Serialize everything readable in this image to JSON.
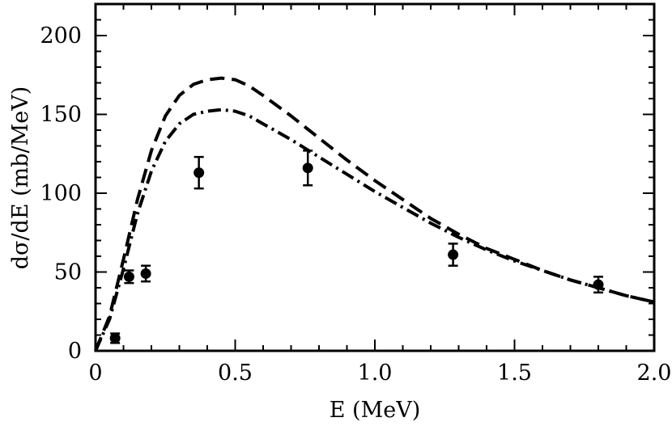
{
  "chart_data": {
    "type": "line",
    "xlabel": "E (MeV)",
    "ylabel": "dσ/dE (mb/MeV)",
    "xlim": [
      0,
      2.0
    ],
    "ylim": [
      0,
      220
    ],
    "grid": false,
    "legend": "none",
    "x_ticks": [
      "0",
      "0.5",
      "1.0",
      "1.5",
      "2.0"
    ],
    "x_tick_values": [
      0,
      0.5,
      1.0,
      1.5,
      2.0
    ],
    "y_ticks": [
      "0",
      "50",
      "100",
      "150",
      "200"
    ],
    "y_tick_values": [
      0,
      50,
      100,
      150,
      200
    ],
    "series": [
      {
        "style": "dashed",
        "color": "#000000",
        "x": [
          0,
          0.05,
          0.1,
          0.15,
          0.2,
          0.25,
          0.3,
          0.35,
          0.4,
          0.45,
          0.5,
          0.55,
          0.6,
          0.7,
          0.8,
          0.9,
          1.0,
          1.1,
          1.2,
          1.3,
          1.4,
          1.5,
          1.6,
          1.7,
          1.8,
          1.9,
          2.0
        ],
        "y": [
          0,
          22,
          58,
          96,
          127,
          149,
          162,
          169,
          172,
          173,
          172,
          168,
          162,
          149,
          135,
          121,
          108,
          96,
          84,
          74,
          65,
          58,
          51,
          45,
          40,
          35,
          31
        ]
      },
      {
        "style": "dash-dot",
        "color": "#000000",
        "x": [
          0,
          0.05,
          0.1,
          0.15,
          0.2,
          0.25,
          0.3,
          0.35,
          0.4,
          0.45,
          0.5,
          0.55,
          0.6,
          0.7,
          0.8,
          0.9,
          1.0,
          1.1,
          1.2,
          1.3,
          1.4,
          1.5,
          1.6,
          1.7,
          1.8,
          1.9,
          2.0
        ],
        "y": [
          0,
          20,
          52,
          87,
          114,
          133,
          144,
          150,
          152,
          153,
          152,
          149,
          144,
          134,
          123,
          112,
          101,
          91,
          81,
          72,
          64,
          57,
          51,
          45,
          40,
          35,
          31
        ]
      }
    ],
    "points": [
      {
        "x": 0.07,
        "y": 8,
        "err": 3
      },
      {
        "x": 0.12,
        "y": 47,
        "err": 4
      },
      {
        "x": 0.18,
        "y": 49,
        "err": 5
      },
      {
        "x": 0.37,
        "y": 113,
        "err": 10
      },
      {
        "x": 0.76,
        "y": 116,
        "err": 11
      },
      {
        "x": 1.28,
        "y": 61,
        "err": 7
      },
      {
        "x": 1.8,
        "y": 42,
        "err": 5
      }
    ]
  }
}
